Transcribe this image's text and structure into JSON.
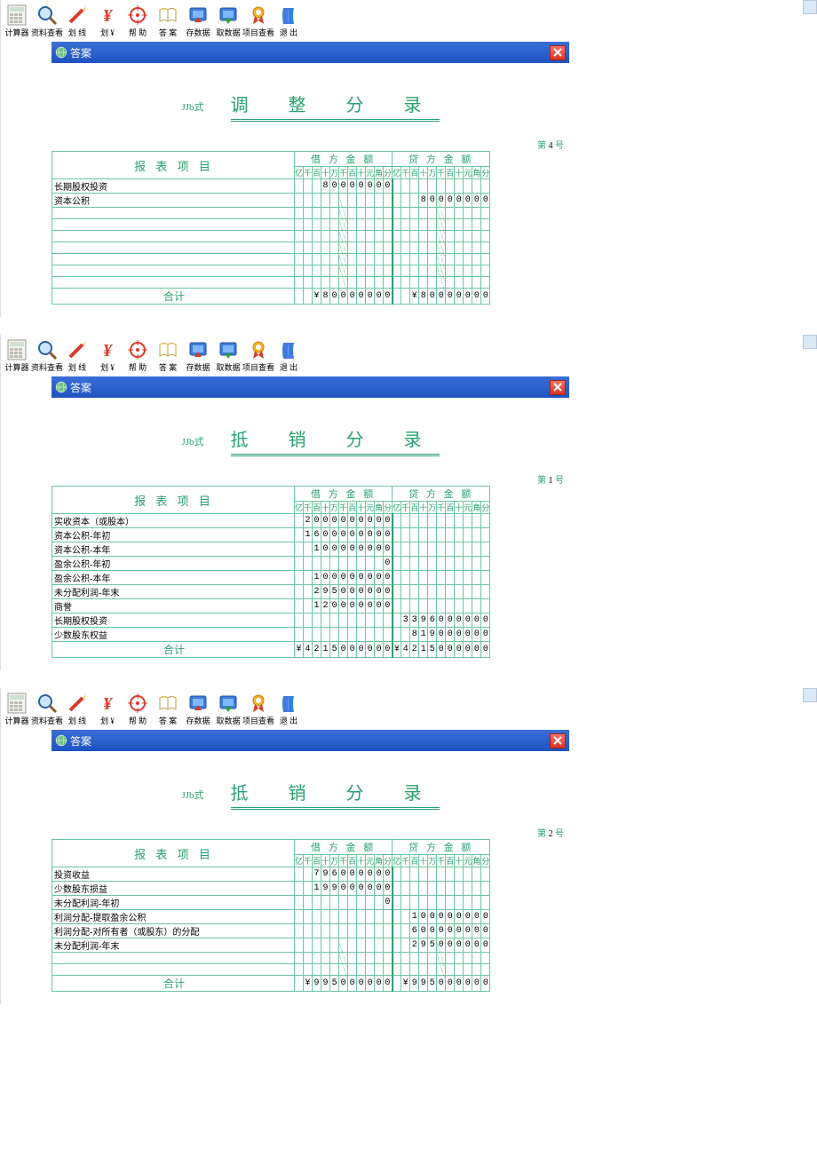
{
  "toolbar": {
    "items": [
      {
        "label": "计算器",
        "icon": "calc"
      },
      {
        "label": "资料查看",
        "icon": "mag"
      },
      {
        "label": "划 线",
        "icon": "pen"
      },
      {
        "label": "划 ¥",
        "icon": "yen"
      },
      {
        "label": "帮 助",
        "icon": "target"
      },
      {
        "label": "答 案",
        "icon": "book"
      },
      {
        "label": "存数据",
        "icon": "disk1"
      },
      {
        "label": "取数据",
        "icon": "disk2"
      },
      {
        "label": "项目查看",
        "icon": "ribbon"
      },
      {
        "label": "退 出",
        "icon": "exit"
      }
    ]
  },
  "window": {
    "title": "答案"
  },
  "docs": [
    {
      "form_code": "JJb式",
      "title": "调 整 分 录",
      "page_no": "4",
      "rows": [
        {
          "name": "长期股权投资",
          "debit": [
            "",
            "",
            "",
            "8",
            "0",
            "0",
            "0",
            "0",
            "0",
            "0",
            "0"
          ],
          "credit": [
            "",
            "",
            "",
            "",
            "",
            "",
            "",
            "",
            "",
            "",
            ""
          ]
        },
        {
          "name": "资本公积",
          "debit": [
            "",
            "",
            "",
            "",
            "",
            "",
            "",
            "",
            "",
            "",
            ""
          ],
          "credit": [
            "",
            "",
            "",
            "8",
            "0",
            "0",
            "0",
            "0",
            "0",
            "0",
            "0"
          ]
        },
        {
          "name": "",
          "debit": [
            "",
            "",
            "",
            "",
            "",
            "",
            "",
            "",
            "",
            "",
            ""
          ],
          "credit": [
            "",
            "",
            "",
            "",
            "",
            "",
            "",
            "",
            "",
            "",
            ""
          ],
          "diag": true
        },
        {
          "name": "",
          "debit": [
            "",
            "",
            "",
            "",
            "",
            "",
            "",
            "",
            "",
            "",
            ""
          ],
          "credit": [
            "",
            "",
            "",
            "",
            "",
            "",
            "",
            "",
            "",
            "",
            ""
          ],
          "diag": true
        },
        {
          "name": "",
          "debit": [
            "",
            "",
            "",
            "",
            "",
            "",
            "",
            "",
            "",
            "",
            ""
          ],
          "credit": [
            "",
            "",
            "",
            "",
            "",
            "",
            "",
            "",
            "",
            "",
            ""
          ],
          "diag": true
        },
        {
          "name": "",
          "debit": [
            "",
            "",
            "",
            "",
            "",
            "",
            "",
            "",
            "",
            "",
            ""
          ],
          "credit": [
            "",
            "",
            "",
            "",
            "",
            "",
            "",
            "",
            "",
            "",
            ""
          ],
          "diag": true
        },
        {
          "name": "",
          "debit": [
            "",
            "",
            "",
            "",
            "",
            "",
            "",
            "",
            "",
            "",
            ""
          ],
          "credit": [
            "",
            "",
            "",
            "",
            "",
            "",
            "",
            "",
            "",
            "",
            ""
          ],
          "diag": true
        },
        {
          "name": "",
          "debit": [
            "",
            "",
            "",
            "",
            "",
            "",
            "",
            "",
            "",
            "",
            ""
          ],
          "credit": [
            "",
            "",
            "",
            "",
            "",
            "",
            "",
            "",
            "",
            "",
            ""
          ],
          "diag": true
        },
        {
          "name": "",
          "debit": [
            "",
            "",
            "",
            "",
            "",
            "",
            "",
            "",
            "",
            "",
            ""
          ],
          "credit": [
            "",
            "",
            "",
            "",
            "",
            "",
            "",
            "",
            "",
            "",
            ""
          ],
          "diag": true
        }
      ],
      "sum_label": "合计",
      "sum_debit": [
        "",
        "",
        "¥",
        "8",
        "0",
        "0",
        "0",
        "0",
        "0",
        "0",
        "0"
      ],
      "sum_credit": [
        "",
        "",
        "¥",
        "8",
        "0",
        "0",
        "0",
        "0",
        "0",
        "0",
        "0"
      ]
    },
    {
      "form_code": "JJb式",
      "title": "抵 销 分 录",
      "page_no": "1",
      "rows": [
        {
          "name": "实收资本（或股本）",
          "debit": [
            "",
            "2",
            "0",
            "0",
            "0",
            "0",
            "0",
            "0",
            "0",
            "0",
            "0"
          ],
          "credit": [
            "",
            "",
            "",
            "",
            "",
            "",
            "",
            "",
            "",
            "",
            ""
          ]
        },
        {
          "name": "资本公积-年初",
          "debit": [
            "",
            "1",
            "6",
            "0",
            "0",
            "0",
            "0",
            "0",
            "0",
            "0",
            "0"
          ],
          "credit": [
            "",
            "",
            "",
            "",
            "",
            "",
            "",
            "",
            "",
            "",
            ""
          ]
        },
        {
          "name": "资本公积-本年",
          "debit": [
            "",
            "",
            "1",
            "0",
            "0",
            "0",
            "0",
            "0",
            "0",
            "0",
            "0"
          ],
          "credit": [
            "",
            "",
            "",
            "",
            "",
            "",
            "",
            "",
            "",
            "",
            ""
          ]
        },
        {
          "name": "盈余公积-年初",
          "debit": [
            "",
            "",
            "",
            "",
            "",
            "",
            "",
            "",
            "",
            "",
            "0"
          ],
          "credit": [
            "",
            "",
            "",
            "",
            "",
            "",
            "",
            "",
            "",
            "",
            ""
          ]
        },
        {
          "name": "盈余公积-本年",
          "debit": [
            "",
            "",
            "1",
            "0",
            "0",
            "0",
            "0",
            "0",
            "0",
            "0",
            "0"
          ],
          "credit": [
            "",
            "",
            "",
            "",
            "",
            "",
            "",
            "",
            "",
            "",
            ""
          ]
        },
        {
          "name": "未分配利润-年末",
          "debit": [
            "",
            "",
            "2",
            "9",
            "5",
            "0",
            "0",
            "0",
            "0",
            "0",
            "0"
          ],
          "credit": [
            "",
            "",
            "",
            "",
            "",
            "",
            "",
            "",
            "",
            "",
            ""
          ]
        },
        {
          "name": "商誉",
          "debit": [
            "",
            "",
            "1",
            "2",
            "0",
            "0",
            "0",
            "0",
            "0",
            "0",
            "0"
          ],
          "credit": [
            "",
            "",
            "",
            "",
            "",
            "",
            "",
            "",
            "",
            "",
            ""
          ]
        },
        {
          "name": "长期股权投资",
          "debit": [
            "",
            "",
            "",
            "",
            "",
            "",
            "",
            "",
            "",
            "",
            ""
          ],
          "credit": [
            "",
            "3",
            "3",
            "9",
            "6",
            "0",
            "0",
            "0",
            "0",
            "0",
            "0"
          ]
        },
        {
          "name": "少数股东权益",
          "debit": [
            "",
            "",
            "",
            "",
            "",
            "",
            "",
            "",
            "",
            "",
            ""
          ],
          "credit": [
            "",
            "",
            "8",
            "1",
            "9",
            "0",
            "0",
            "0",
            "0",
            "0",
            "0"
          ]
        }
      ],
      "sum_label": "合计",
      "sum_debit": [
        "¥",
        "4",
        "2",
        "1",
        "5",
        "0",
        "0",
        "0",
        "0",
        "0",
        "0"
      ],
      "sum_credit": [
        "¥",
        "4",
        "2",
        "1",
        "5",
        "0",
        "0",
        "0",
        "0",
        "0",
        "0"
      ]
    },
    {
      "form_code": "JJb式",
      "title": "抵 销 分 录",
      "page_no": "2",
      "rows": [
        {
          "name": "投资收益",
          "debit": [
            "",
            "",
            "7",
            "9",
            "6",
            "0",
            "0",
            "0",
            "0",
            "0",
            "0"
          ],
          "credit": [
            "",
            "",
            "",
            "",
            "",
            "",
            "",
            "",
            "",
            "",
            ""
          ]
        },
        {
          "name": "少数股东损益",
          "debit": [
            "",
            "",
            "1",
            "9",
            "9",
            "0",
            "0",
            "0",
            "0",
            "0",
            "0"
          ],
          "credit": [
            "",
            "",
            "",
            "",
            "",
            "",
            "",
            "",
            "",
            "",
            ""
          ]
        },
        {
          "name": "未分配利润-年初",
          "debit": [
            "",
            "",
            "",
            "",
            "",
            "",
            "",
            "",
            "",
            "",
            "0"
          ],
          "credit": [
            "",
            "",
            "",
            "",
            "",
            "",
            "",
            "",
            "",
            "",
            ""
          ]
        },
        {
          "name": "利润分配-提取盈余公积",
          "debit": [
            "",
            "",
            "",
            "",
            "",
            "",
            "",
            "",
            "",
            "",
            ""
          ],
          "credit": [
            "",
            "",
            "1",
            "0",
            "0",
            "0",
            "0",
            "0",
            "0",
            "0",
            "0"
          ]
        },
        {
          "name": "利润分配-对所有者（或股东）的分配",
          "debit": [
            "",
            "",
            "",
            "",
            "",
            "",
            "",
            "",
            "",
            "",
            ""
          ],
          "credit": [
            "",
            "",
            "6",
            "0",
            "0",
            "0",
            "0",
            "0",
            "0",
            "0",
            "0"
          ]
        },
        {
          "name": "未分配利润-年末",
          "debit": [
            "",
            "",
            "",
            "",
            "",
            "",
            "",
            "",
            "",
            "",
            ""
          ],
          "credit": [
            "",
            "",
            "2",
            "9",
            "5",
            "0",
            "0",
            "0",
            "0",
            "0",
            "0"
          ]
        },
        {
          "name": "",
          "debit": [
            "",
            "",
            "",
            "",
            "",
            "",
            "",
            "",
            "",
            "",
            ""
          ],
          "credit": [
            "",
            "",
            "",
            "",
            "",
            "",
            "",
            "",
            "",
            "",
            ""
          ],
          "diag": true
        },
        {
          "name": "",
          "debit": [
            "",
            "",
            "",
            "",
            "",
            "",
            "",
            "",
            "",
            "",
            ""
          ],
          "credit": [
            "",
            "",
            "",
            "",
            "",
            "",
            "",
            "",
            "",
            "",
            ""
          ],
          "diag": true
        }
      ],
      "sum_label": "合计",
      "sum_debit": [
        "",
        "¥",
        "9",
        "9",
        "5",
        "0",
        "0",
        "0",
        "0",
        "0",
        "0"
      ],
      "sum_credit": [
        "",
        "¥",
        "9",
        "9",
        "5",
        "0",
        "0",
        "0",
        "0",
        "0",
        "0"
      ]
    }
  ],
  "headers": {
    "item": "报 表 项 目",
    "debit": "借 方 金 额",
    "credit": "贷 方 金 额",
    "digits": [
      "亿",
      "千",
      "百",
      "十",
      "万",
      "千",
      "百",
      "十",
      "元",
      "角",
      "分"
    ],
    "page_label": "第",
    "page_suffix": "号"
  },
  "colors": {
    "green": "#2aa070",
    "titlebar": "#2a5fcf"
  }
}
